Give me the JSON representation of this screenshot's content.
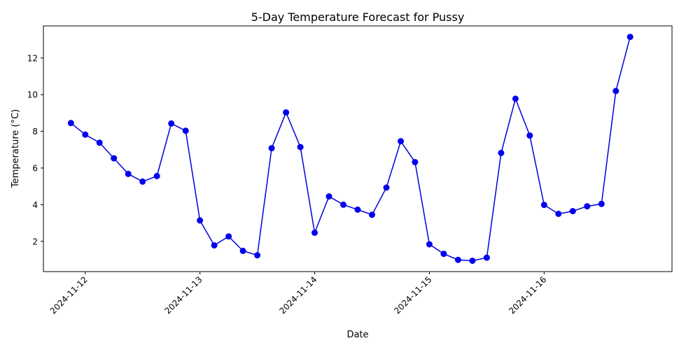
{
  "chart_data": {
    "type": "line",
    "title": "5-Day Temperature Forecast for Pussy",
    "xlabel": "Date",
    "ylabel": "Temperature (°C)",
    "x_tick_labels": [
      "2024-11-12",
      "2024-11-13",
      "2024-11-14",
      "2024-11-15",
      "2024-11-16"
    ],
    "x_tick_values": [
      "2024-11-12 00:00",
      "2024-11-13 00:00",
      "2024-11-14 00:00",
      "2024-11-15 00:00",
      "2024-11-16 00:00"
    ],
    "xlim": [
      "2024-11-11 15:15",
      "2024-11-17 02:45"
    ],
    "y_ticks": [
      2,
      4,
      6,
      8,
      10,
      12
    ],
    "ylim": [
      0.35,
      13.75
    ],
    "grid": false,
    "colors": {
      "line": "#0000dd",
      "marker": "#0000ee"
    },
    "series": [
      {
        "x": [
          "2024-11-11 21:00",
          "2024-11-12 00:00",
          "2024-11-12 03:00",
          "2024-11-12 06:00",
          "2024-11-12 09:00",
          "2024-11-12 12:00",
          "2024-11-12 15:00",
          "2024-11-12 18:00",
          "2024-11-12 21:00",
          "2024-11-13 00:00",
          "2024-11-13 03:00",
          "2024-11-13 06:00",
          "2024-11-13 09:00",
          "2024-11-13 12:00",
          "2024-11-13 15:00",
          "2024-11-13 18:00",
          "2024-11-13 21:00",
          "2024-11-14 00:00",
          "2024-11-14 03:00",
          "2024-11-14 06:00",
          "2024-11-14 09:00",
          "2024-11-14 12:00",
          "2024-11-14 15:00",
          "2024-11-14 18:00",
          "2024-11-14 21:00",
          "2024-11-15 00:00",
          "2024-11-15 03:00",
          "2024-11-15 06:00",
          "2024-11-15 09:00",
          "2024-11-15 12:00",
          "2024-11-15 15:00",
          "2024-11-15 18:00",
          "2024-11-15 21:00",
          "2024-11-16 00:00",
          "2024-11-16 03:00",
          "2024-11-16 06:00",
          "2024-11-16 09:00",
          "2024-11-16 12:00",
          "2024-11-16 15:00",
          "2024-11-16 18:00"
        ],
        "values": [
          8.45,
          7.82,
          7.38,
          6.53,
          5.68,
          5.26,
          5.56,
          8.43,
          8.03,
          3.14,
          1.78,
          2.27,
          1.48,
          1.24,
          7.08,
          9.03,
          7.14,
          2.47,
          4.45,
          4.0,
          3.73,
          3.45,
          4.93,
          7.46,
          6.32,
          1.84,
          1.32,
          0.99,
          0.94,
          1.11,
          6.82,
          9.78,
          7.77,
          3.99,
          3.5,
          3.65,
          3.91,
          4.04,
          10.2,
          13.15
        ]
      }
    ]
  }
}
